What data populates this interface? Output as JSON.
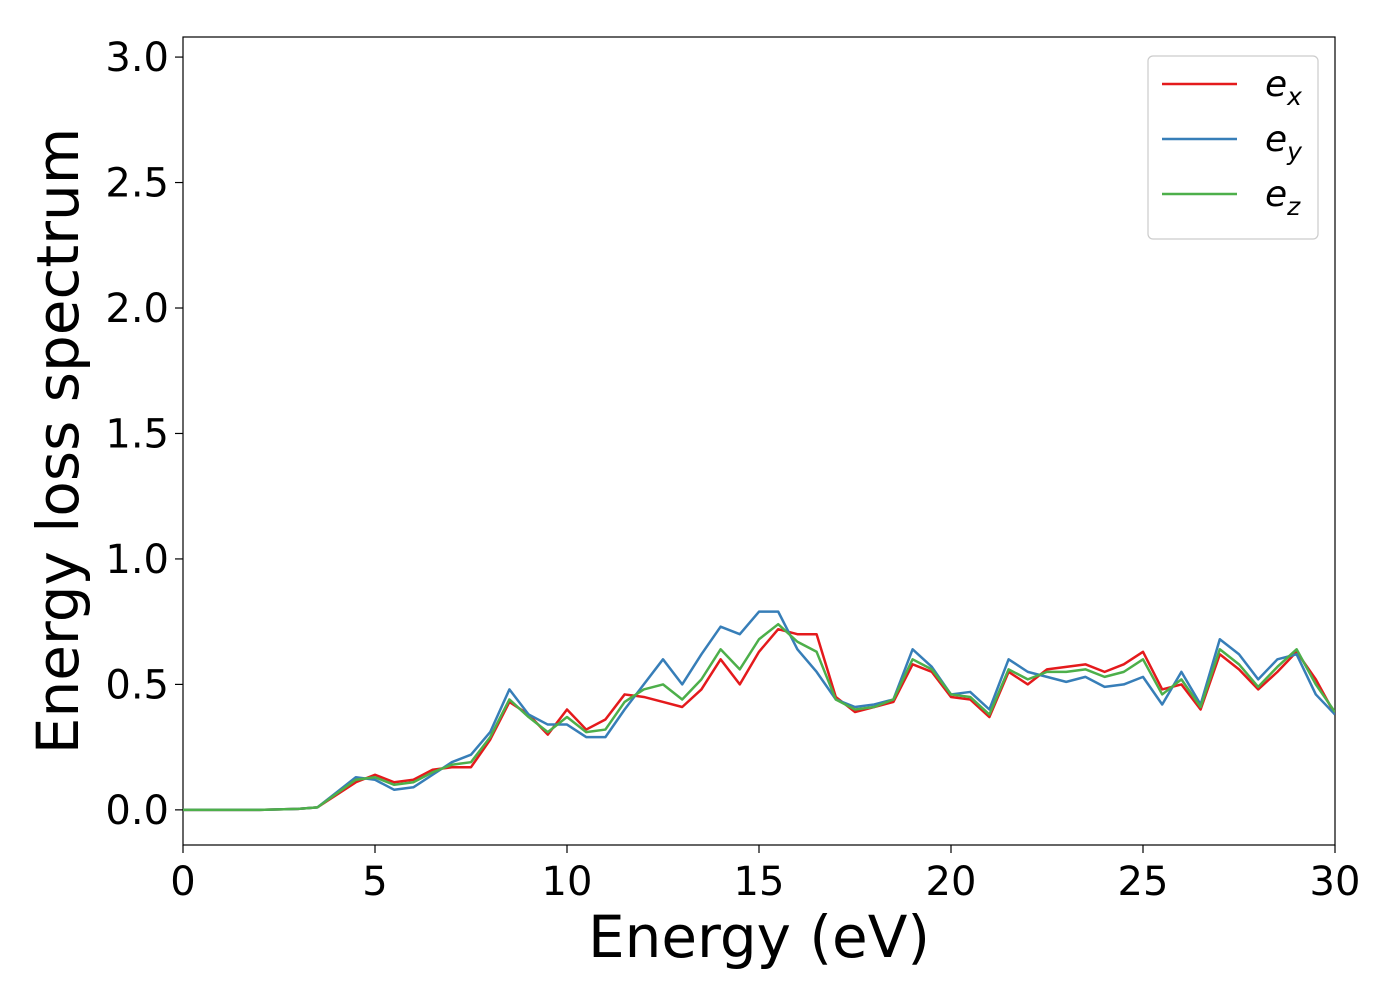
{
  "chart_data": {
    "type": "line",
    "xlabel": "Energy (eV)",
    "ylabel": "Energy loss spectrum",
    "x": [
      0,
      0.5,
      1,
      1.5,
      2,
      2.5,
      3,
      3.5,
      4,
      4.5,
      5,
      5.5,
      6,
      6.5,
      7,
      7.5,
      8,
      8.5,
      9,
      9.5,
      10,
      10.5,
      11,
      11.5,
      12,
      12.5,
      13,
      13.5,
      14,
      14.5,
      15,
      15.5,
      16,
      16.5,
      17,
      17.5,
      18,
      18.5,
      19,
      19.5,
      20,
      20.5,
      21,
      21.5,
      22,
      22.5,
      23,
      23.5,
      24,
      24.5,
      25,
      25.5,
      26,
      26.5,
      27,
      27.5,
      28,
      28.5,
      29,
      29.5,
      30
    ],
    "series": [
      {
        "name": "ex",
        "color": "#e41a1c",
        "values": [
          0,
          0,
          0,
          0,
          0,
          0.002,
          0.004,
          0.01,
          0.06,
          0.11,
          0.14,
          0.11,
          0.12,
          0.16,
          0.17,
          0.17,
          0.28,
          0.43,
          0.38,
          0.3,
          0.4,
          0.32,
          0.36,
          0.46,
          0.45,
          0.43,
          0.41,
          0.48,
          0.6,
          0.5,
          0.63,
          0.72,
          0.7,
          0.7,
          0.45,
          0.39,
          0.41,
          0.43,
          0.58,
          0.55,
          0.45,
          0.44,
          0.37,
          0.55,
          0.5,
          0.56,
          0.57,
          0.58,
          0.55,
          0.58,
          0.63,
          0.48,
          0.5,
          0.4,
          0.62,
          0.56,
          0.48,
          0.55,
          0.63,
          0.52,
          0.38
        ]
      },
      {
        "name": "ey",
        "color": "#377eb8",
        "values": [
          0,
          0,
          0,
          0,
          0,
          0.002,
          0.004,
          0.01,
          0.07,
          0.13,
          0.12,
          0.08,
          0.09,
          0.14,
          0.19,
          0.22,
          0.31,
          0.48,
          0.38,
          0.34,
          0.34,
          0.29,
          0.29,
          0.4,
          0.5,
          0.6,
          0.5,
          0.62,
          0.73,
          0.7,
          0.79,
          0.79,
          0.64,
          0.55,
          0.44,
          0.41,
          0.42,
          0.44,
          0.64,
          0.57,
          0.46,
          0.47,
          0.4,
          0.6,
          0.55,
          0.53,
          0.51,
          0.53,
          0.49,
          0.5,
          0.53,
          0.42,
          0.55,
          0.42,
          0.68,
          0.62,
          0.52,
          0.6,
          0.62,
          0.46,
          0.38
        ]
      },
      {
        "name": "ez",
        "color": "#4daf4a",
        "values": [
          0,
          0,
          0,
          0,
          0,
          0.002,
          0.004,
          0.01,
          0.065,
          0.12,
          0.13,
          0.1,
          0.11,
          0.15,
          0.18,
          0.19,
          0.29,
          0.44,
          0.37,
          0.31,
          0.37,
          0.31,
          0.32,
          0.43,
          0.48,
          0.5,
          0.44,
          0.52,
          0.64,
          0.56,
          0.68,
          0.74,
          0.67,
          0.63,
          0.44,
          0.4,
          0.41,
          0.44,
          0.6,
          0.56,
          0.46,
          0.45,
          0.38,
          0.56,
          0.52,
          0.55,
          0.55,
          0.56,
          0.53,
          0.55,
          0.6,
          0.46,
          0.52,
          0.41,
          0.64,
          0.58,
          0.49,
          0.57,
          0.64,
          0.5,
          0.39
        ]
      }
    ],
    "xlim": [
      0,
      30
    ],
    "xticks": [
      0,
      5,
      10,
      15,
      20,
      25,
      30
    ],
    "ylim": [
      -0.14,
      3.08
    ],
    "yticks": [
      {
        "value": 0,
        "label": "0.0"
      },
      0.5,
      {
        "value": 1,
        "label": "1.0"
      },
      1.5,
      {
        "value": 2,
        "label": "2.0"
      },
      2.5,
      {
        "value": 3,
        "label": "3.0"
      }
    ],
    "legend": "upper right",
    "grid": false
  }
}
